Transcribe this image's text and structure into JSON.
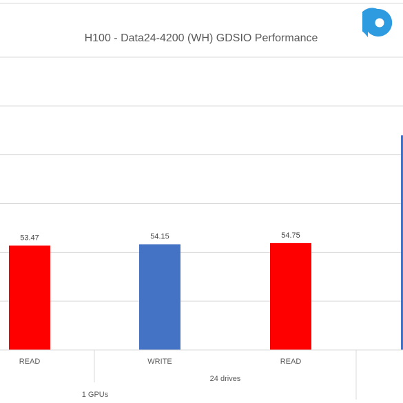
{
  "chart_data": {
    "type": "bar",
    "title": "H100 - Data24-4200 (WH) GDSIO Performance",
    "categories": [
      "READ",
      "WRITE",
      "READ"
    ],
    "values": [
      53.47,
      54.15,
      54.75
    ],
    "value_labels": [
      "53.47",
      "54.15",
      "54.75"
    ],
    "bar_colors": [
      "#FF0000",
      "#4472C4",
      "#FF0000"
    ],
    "group_labels": {
      "drives": "24 drives",
      "gpus": "1 GPUs"
    },
    "grid": true,
    "ylim": [
      0,
      150
    ],
    "partial_bar": {
      "color": "#4472C4",
      "value": 110
    }
  }
}
